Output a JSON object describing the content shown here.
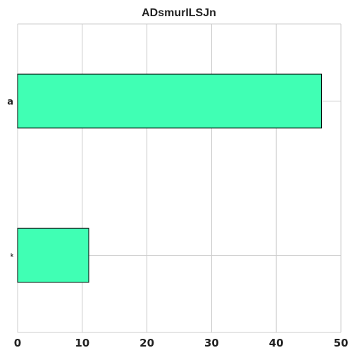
{
  "chart_data": {
    "type": "bar",
    "orientation": "horizontal",
    "title": "ADsmurILSJn",
    "xlabel": "",
    "ylabel": "",
    "categories": [
      "a",
      "k"
    ],
    "values": [
      47,
      11
    ],
    "xlim": [
      0,
      50
    ],
    "xticks": [
      0,
      10,
      20,
      30,
      40,
      50
    ],
    "grid": true,
    "bar_color": "#40ffb4",
    "edge_color": "#000000"
  }
}
